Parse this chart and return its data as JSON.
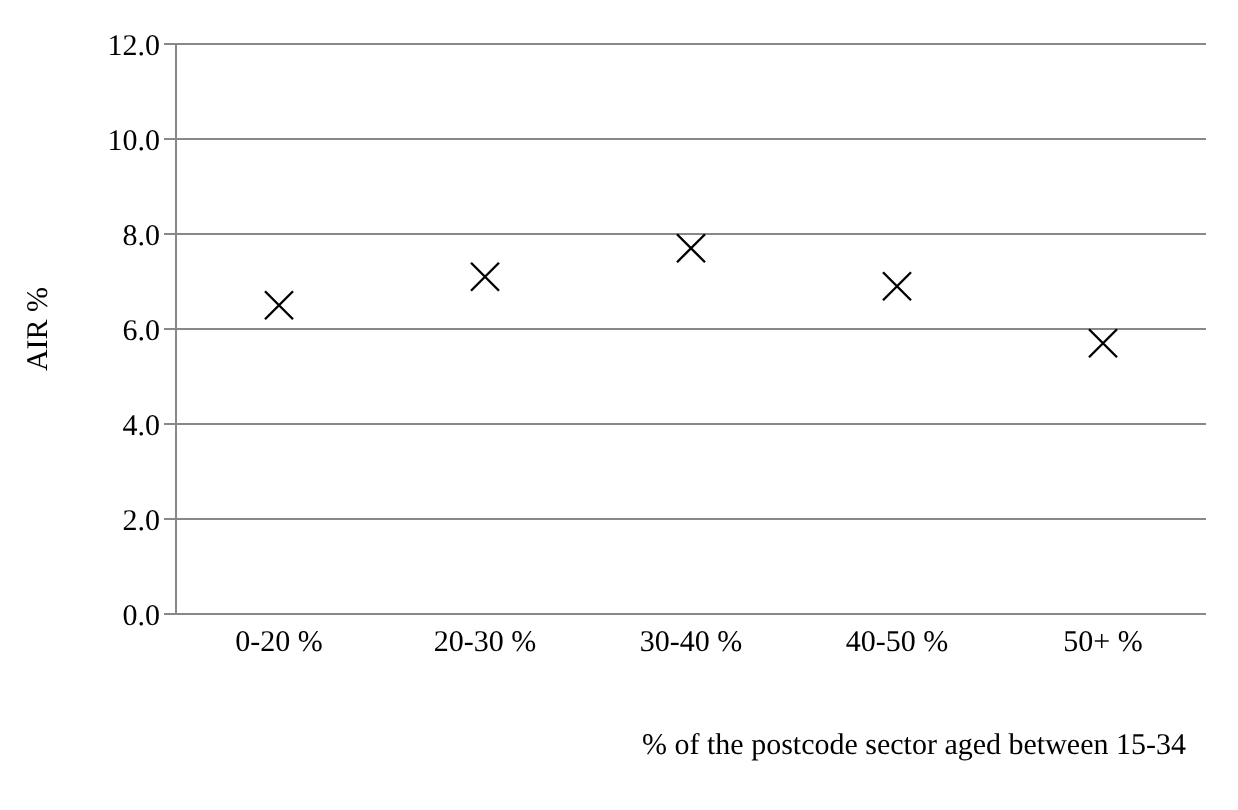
{
  "chart_data": {
    "type": "scatter",
    "xlabel": "% of the postcode sector aged between 15-34",
    "ylabel": "AIR %",
    "categories": [
      "0-20 %",
      "20-30 %",
      "30-40 %",
      "40-50 %",
      "50+ %"
    ],
    "series": [
      {
        "color": "#000000",
        "values": [
          6.5,
          7.1,
          7.7,
          6.9,
          5.7
        ]
      }
    ],
    "ylim": [
      0,
      12
    ],
    "yticks": [
      {
        "value": 0,
        "label": "0.0"
      },
      {
        "value": 2,
        "label": "2.0"
      },
      {
        "value": 4,
        "label": "4.0"
      },
      {
        "value": 6,
        "label": "6.0"
      },
      {
        "value": 8,
        "label": "8.0"
      },
      {
        "value": 10,
        "label": "10.0"
      },
      {
        "value": 12,
        "label": "12.0"
      }
    ],
    "grid": "y",
    "marker": "cross"
  }
}
